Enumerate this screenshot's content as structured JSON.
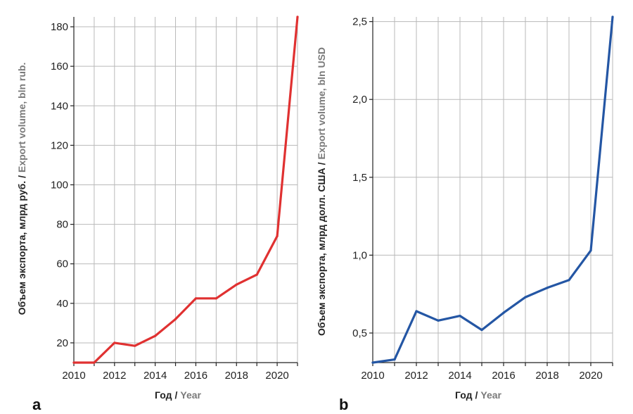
{
  "chart_data": [
    {
      "panel": "a",
      "type": "line",
      "xlabel_main": "Год",
      "xlabel_en": "Year",
      "ylabel_main": "Объем экспорта, млрд руб.",
      "ylabel_en": "Export volume, bln rub.",
      "xlim": [
        2010,
        2021
      ],
      "ylim": [
        10,
        185
      ],
      "x_ticks": [
        2010,
        2012,
        2014,
        2016,
        2018,
        2020
      ],
      "y_ticks": [
        20,
        40,
        60,
        80,
        100,
        120,
        140,
        160,
        180
      ],
      "y_tick_labels": [
        "20",
        "40",
        "60",
        "80",
        "100",
        "120",
        "140",
        "160",
        "180"
      ],
      "grid": true,
      "color": "#e03131",
      "x": [
        2010,
        2011,
        2012,
        2013,
        2014,
        2015,
        2016,
        2017,
        2018,
        2019,
        2020,
        2021
      ],
      "y": [
        10,
        10,
        20,
        18.5,
        23.5,
        32,
        42.5,
        42.5,
        49.5,
        54.5,
        74,
        185
      ]
    },
    {
      "panel": "b",
      "type": "line",
      "xlabel_main": "Год",
      "xlabel_en": "Year",
      "ylabel_main": "Объем экспорта, млрд долл. США",
      "ylabel_en": "Export volume, bln USD",
      "xlim": [
        2010,
        2021
      ],
      "ylim": [
        0.31,
        2.53
      ],
      "x_ticks": [
        2010,
        2012,
        2014,
        2016,
        2018,
        2020
      ],
      "y_ticks": [
        0.5,
        1.0,
        1.5,
        2.0,
        2.5
      ],
      "y_tick_labels": [
        "0,5",
        "1,0",
        "1,5",
        "2,0",
        "2,5"
      ],
      "grid": true,
      "color": "#2456a4",
      "x": [
        2010,
        2011,
        2012,
        2013,
        2014,
        2015,
        2016,
        2017,
        2018,
        2019,
        2020,
        2021
      ],
      "y": [
        0.31,
        0.33,
        0.64,
        0.58,
        0.61,
        0.52,
        0.63,
        0.73,
        0.79,
        0.84,
        1.03,
        2.53
      ]
    }
  ]
}
